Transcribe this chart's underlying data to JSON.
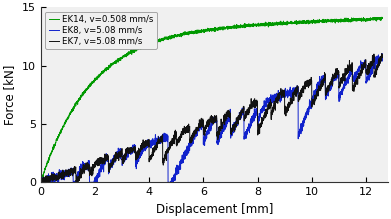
{
  "xlabel": "Displacement [mm]",
  "ylabel": "Force [kN]",
  "xlim": [
    0,
    12.8
  ],
  "ylim": [
    0,
    15
  ],
  "xticks": [
    0,
    2,
    4,
    6,
    8,
    10,
    12
  ],
  "yticks": [
    0,
    5,
    10,
    15
  ],
  "legend": [
    {
      "label": "EK7, v=5.08 mm/s",
      "color": "#111111"
    },
    {
      "label": "EK8, v=5.08 mm/s",
      "color": "#1122cc"
    },
    {
      "label": "EK14, v=0.508 mm/s",
      "color": "#009900"
    }
  ],
  "figsize": [
    3.91,
    2.19
  ],
  "dpi": 100,
  "bg_color": "#f0f0f0"
}
